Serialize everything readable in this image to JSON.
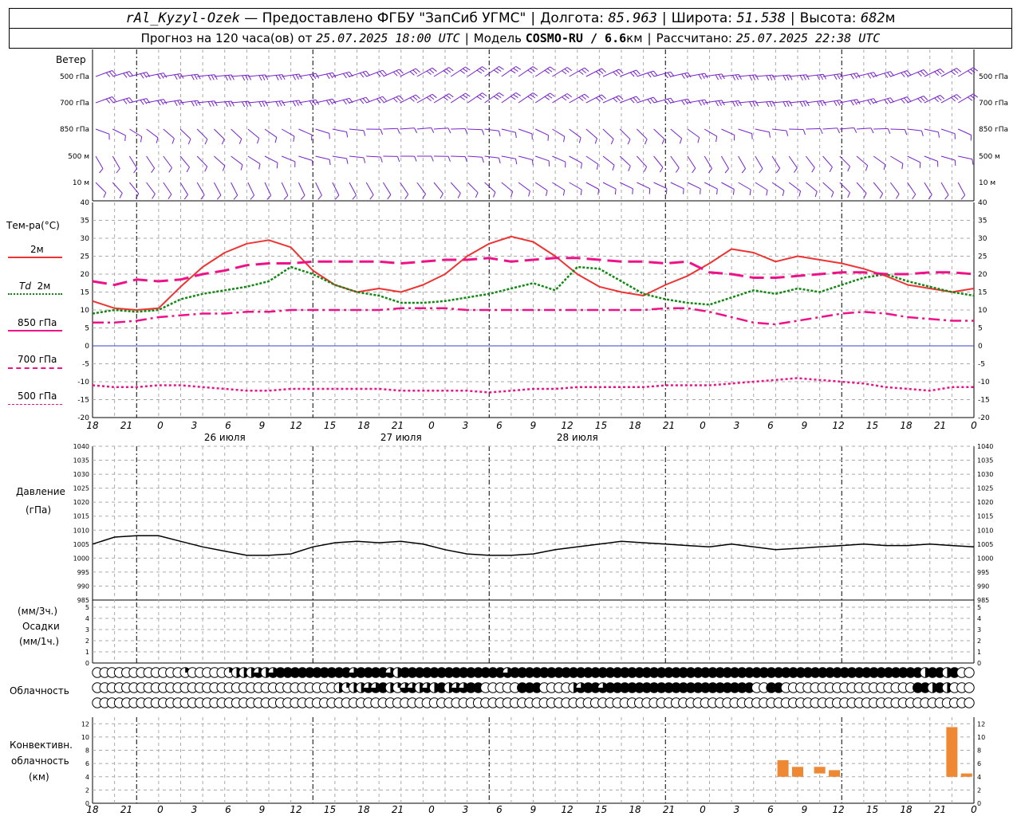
{
  "header": {
    "station": "rAl_Kyzyl-Ozek",
    "provider": "— Предоставлено ФГБУ \"ЗапСиб УГМС\"",
    "lon_label": "Долгота:",
    "lon_value": "85.963",
    "lat_label": "Широта:",
    "lat_value": "51.538",
    "alt_label": "Высота:",
    "alt_value": "682",
    "alt_unit": "м",
    "forecast_label": "Прогноз на 120 часа(ов) от",
    "forecast_from": "25.07.2025 18:00 UTC",
    "model_label": "Модель",
    "model_name": "COSMO-RU / 6.6",
    "model_unit": "км",
    "computed_label": "Рассчитано:",
    "computed_value": "25.07.2025 22:38 UTC"
  },
  "labels": {
    "wind": "Ветер",
    "wind_levels": [
      "500 гПа",
      "700 гПа",
      "850 гПа",
      "500 м",
      "10  м"
    ],
    "temp_title": "Тем-ра(°С)",
    "legend_2m": "2м",
    "legend_td": "Td",
    "legend_td2": "2м",
    "legend_850": "850 гПа",
    "legend_700": "700 гПа",
    "legend_500": "500 гПа",
    "pressure_title": "Давление",
    "pressure_unit": "(гПа)",
    "precip_unit3": "(мм/3ч.)",
    "precip_title": "Осадки",
    "precip_unit1": "(мм/1ч.)",
    "cloud_title": "Облачность",
    "conv_title1": "Конвективн.",
    "conv_title2": "облачность",
    "conv_unit": "(км)"
  },
  "colors": {
    "t2m": "#ee3333",
    "td": "#118811",
    "t850": "#ee1188",
    "t700": "#ee1188",
    "t500": "#ee1188",
    "wind": "#7722cc",
    "conv": "#ee8833",
    "zero": "#3344cc"
  },
  "time_axis": {
    "hour_labels": [
      "18",
      "21",
      "0",
      "3",
      "6",
      "9",
      "12",
      "15",
      "18",
      "21",
      "0",
      "3",
      "6",
      "9",
      "12",
      "15",
      "18",
      "21",
      "0",
      "3",
      "6",
      "9",
      "12",
      "15",
      "18",
      "21",
      "0"
    ],
    "day_labels": [
      "26 июля",
      "27 июля",
      "28 июля"
    ]
  },
  "chart_data": [
    {
      "type": "line",
      "name": "temperature",
      "ylim": [
        -20,
        40
      ],
      "yticks": [
        -20,
        -15,
        -10,
        -5,
        0,
        5,
        10,
        15,
        20,
        25,
        30,
        35,
        40
      ],
      "x_hours": [
        0,
        3,
        6,
        9,
        12,
        15,
        18,
        21,
        24,
        27,
        30,
        33,
        36,
        39,
        42,
        45,
        48,
        51,
        54,
        57,
        60,
        63,
        66,
        69,
        72,
        75,
        78,
        81,
        84,
        87,
        90,
        93,
        96,
        99,
        102,
        105,
        108,
        111,
        114,
        117,
        120
      ],
      "series": [
        {
          "name": "2м",
          "values": [
            12.5,
            10.5,
            10,
            10.5,
            16.5,
            22,
            26,
            28.5,
            29.5,
            27.5,
            21,
            17,
            15,
            16,
            15,
            17,
            20,
            25,
            28.5,
            30.5,
            29,
            25,
            20,
            16.5,
            15,
            14,
            17,
            19.5,
            23,
            27,
            26,
            23.5,
            25,
            24,
            23,
            21.5,
            19.5,
            17,
            16,
            15,
            16
          ]
        },
        {
          "name": "Td 2м",
          "values": [
            9,
            10,
            9.5,
            10,
            13,
            14.5,
            15.5,
            16.5,
            18,
            22,
            20,
            17,
            15,
            14,
            12,
            12,
            12.5,
            13.5,
            14.5,
            16,
            17.5,
            15.5,
            22,
            21.5,
            18,
            14.5,
            13,
            12,
            11.5,
            13.5,
            15.5,
            14.5,
            16,
            15,
            17,
            19,
            20,
            18,
            16.5,
            15,
            14
          ]
        },
        {
          "name": "850 гПа",
          "values": [
            18,
            17,
            18.5,
            18,
            18.5,
            20,
            21,
            22.5,
            23,
            23,
            23.5,
            23.5,
            23.5,
            23.5,
            23,
            23.5,
            24,
            24,
            24.5,
            23.5,
            24,
            24.5,
            24.5,
            24,
            23.5,
            23.5,
            23,
            23.5,
            20.5,
            20,
            19,
            19,
            19.5,
            20,
            20.5,
            20.5,
            20,
            20,
            20.5,
            20.5,
            20
          ]
        },
        {
          "name": "700 гПа",
          "values": [
            6.5,
            6.5,
            7,
            8,
            8.5,
            9,
            9,
            9.5,
            9.5,
            10,
            10,
            10,
            10,
            10,
            10.5,
            10.5,
            10.5,
            10,
            10,
            10,
            10,
            10,
            10,
            10,
            10,
            10,
            10.5,
            10.5,
            9.5,
            8,
            6.5,
            6,
            7,
            8,
            9,
            9.5,
            9,
            8,
            7.5,
            7,
            7
          ]
        },
        {
          "name": "500 гПа",
          "values": [
            -11,
            -11.5,
            -11.5,
            -11,
            -11,
            -11.5,
            -12,
            -12.5,
            -12.5,
            -12,
            -12,
            -12,
            -12,
            -12,
            -12.5,
            -12.5,
            -12.5,
            -12.5,
            -13,
            -12.5,
            -12,
            -12,
            -11.5,
            -11.5,
            -11.5,
            -11.5,
            -11,
            -11,
            -11,
            -10.5,
            -10,
            -9.5,
            -9,
            -9.5,
            -10,
            -10.5,
            -11.5,
            -12,
            -12.5,
            -11.5,
            -11.5
          ]
        }
      ]
    },
    {
      "type": "line",
      "name": "pressure",
      "ylim": [
        985,
        1040
      ],
      "yticks": [
        985,
        990,
        995,
        1000,
        1005,
        1010,
        1015,
        1020,
        1025,
        1030,
        1035,
        1040
      ],
      "x_hours": [
        0,
        3,
        6,
        9,
        12,
        15,
        18,
        21,
        24,
        27,
        30,
        33,
        36,
        39,
        42,
        45,
        48,
        51,
        54,
        57,
        60,
        63,
        66,
        69,
        72,
        75,
        78,
        81,
        84,
        87,
        90,
        93,
        96,
        99,
        102,
        105,
        108,
        111,
        114,
        117,
        120
      ],
      "series": [
        {
          "name": "Давление",
          "values": [
            1005,
            1007.5,
            1008,
            1008,
            1006,
            1004,
            1002.5,
            1001,
            1001,
            1001.5,
            1004,
            1005.5,
            1006,
            1005.5,
            1006,
            1005,
            1003,
            1001.5,
            1001,
            1001,
            1001.5,
            1003,
            1004,
            1005,
            1006,
            1005.5,
            1005,
            1004.5,
            1004,
            1005,
            1004,
            1003,
            1003.5,
            1004,
            1004.5,
            1005,
            1004.5,
            1004.5,
            1005,
            1004.5,
            1004
          ]
        }
      ]
    },
    {
      "type": "bar",
      "name": "precipitation",
      "ylim": [
        0,
        5
      ],
      "yticks": [
        0,
        1,
        2,
        3,
        4,
        5
      ],
      "values": []
    },
    {
      "type": "bar",
      "name": "convective_cloud",
      "ylim": [
        0,
        13
      ],
      "yticks": [
        0,
        2,
        4,
        6,
        8,
        10,
        12
      ],
      "bars": [
        {
          "x_hours": 94,
          "bottom": 4,
          "top": 6.5
        },
        {
          "x_hours": 96,
          "bottom": 4,
          "top": 5.5
        },
        {
          "x_hours": 99,
          "bottom": 4.5,
          "top": 5.5
        },
        {
          "x_hours": 101,
          "bottom": 4,
          "top": 5
        },
        {
          "x_hours": 117,
          "bottom": 4,
          "top": 11.5
        },
        {
          "x_hours": 119,
          "bottom": 4,
          "top": 4.5
        }
      ]
    }
  ],
  "clouds": {
    "rows": [
      [
        0,
        0,
        0,
        0,
        0,
        0,
        0,
        0,
        0,
        0,
        0,
        0,
        1,
        0,
        0,
        0,
        0,
        0,
        1,
        2,
        2,
        2,
        3,
        2,
        3,
        4,
        4,
        4,
        4,
        4,
        4,
        4,
        4,
        4,
        4,
        3,
        4,
        4,
        4,
        4,
        3,
        2,
        4,
        4,
        4,
        4,
        4,
        4,
        4,
        4,
        4,
        4,
        4,
        4,
        4,
        4,
        3,
        4,
        4,
        4,
        4,
        4,
        4,
        4,
        4,
        4,
        4,
        4,
        4,
        4,
        4,
        4,
        4,
        4,
        4,
        4,
        4,
        4,
        4,
        4,
        4,
        4,
        4,
        4,
        4,
        4,
        4,
        4,
        4,
        4,
        4,
        4,
        4,
        4,
        4,
        4,
        4,
        4,
        4,
        4,
        4,
        4,
        4,
        4,
        4,
        4,
        4,
        4,
        4,
        4,
        4,
        4,
        4,
        2,
        4,
        4,
        2,
        4,
        0,
        0
      ],
      [
        0,
        0,
        0,
        0,
        0,
        0,
        0,
        0,
        0,
        0,
        0,
        0,
        0,
        0,
        0,
        0,
        0,
        0,
        0,
        0,
        0,
        0,
        0,
        0,
        0,
        0,
        0,
        0,
        0,
        0,
        0,
        0,
        0,
        2,
        1,
        2,
        2,
        3,
        3,
        4,
        2,
        1,
        3,
        3,
        2,
        3,
        2,
        4,
        2,
        3,
        3,
        4,
        4,
        0,
        0,
        0,
        0,
        0,
        4,
        4,
        4,
        0,
        0,
        0,
        0,
        2,
        3,
        4,
        4,
        3,
        4,
        4,
        4,
        4,
        4,
        4,
        4,
        4,
        4,
        4,
        4,
        4,
        4,
        4,
        4,
        4,
        4,
        4,
        4,
        4,
        0,
        0,
        4,
        4,
        0,
        0,
        0,
        0,
        0,
        0,
        0,
        0,
        0,
        0,
        0,
        0,
        0,
        0,
        0,
        0,
        0,
        0,
        4,
        4,
        2,
        4,
        2,
        0,
        0,
        0
      ],
      [
        0,
        0,
        0,
        0,
        0,
        0,
        0,
        0,
        0,
        0,
        0,
        0,
        0,
        0,
        0,
        0,
        0,
        0,
        0,
        0,
        0,
        0,
        0,
        0,
        0,
        0,
        0,
        0,
        0,
        0,
        0,
        0,
        0,
        0,
        0,
        0,
        0,
        0,
        0,
        0,
        0,
        0,
        0,
        0,
        0,
        0,
        0,
        0,
        0,
        0,
        0,
        0,
        0,
        0,
        0,
        0,
        0,
        0,
        0,
        0,
        0,
        0,
        0,
        0,
        0,
        0,
        0,
        0,
        0,
        0,
        0,
        0,
        0,
        0,
        0,
        0,
        0,
        0,
        0,
        0,
        0,
        0,
        0,
        0,
        0,
        0,
        0,
        0,
        0,
        0,
        0,
        0,
        0,
        0,
        0,
        0,
        0,
        0,
        0,
        0,
        0,
        0,
        0,
        0,
        0,
        0,
        0,
        0,
        0,
        0,
        0,
        0,
        0,
        0,
        0,
        0,
        0,
        0,
        0,
        0
      ]
    ]
  }
}
